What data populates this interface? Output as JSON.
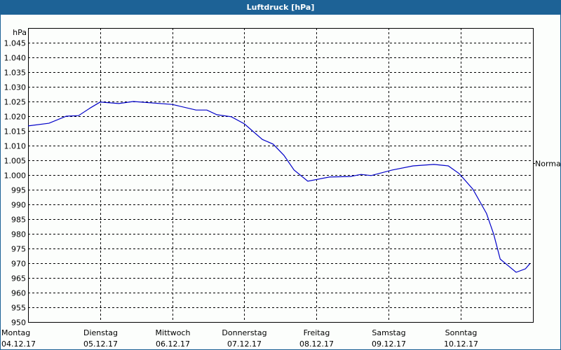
{
  "window": {
    "title": "Luftdruck [hPa]",
    "colors": {
      "titlebar": "#1d6296",
      "background": "#fcfefc",
      "line": "#0000c8",
      "grid": "#000000"
    }
  },
  "chart_data": {
    "type": "line",
    "title": "Luftdruck [hPa]",
    "ylabel": "hPa",
    "xlabel": "",
    "ylim": [
      950,
      1050
    ],
    "y_ticks": [
      "950",
      "955",
      "960",
      "965",
      "970",
      "975",
      "980",
      "985",
      "990",
      "995",
      "1.000",
      "1.005",
      "1.010",
      "1.015",
      "1.020",
      "1.025",
      "1.030",
      "1.035",
      "1.040",
      "1.045"
    ],
    "x_ticks": [
      {
        "day": "Montag",
        "date": "04.12.17"
      },
      {
        "day": "Dienstag",
        "date": "05.12.17"
      },
      {
        "day": "Mittwoch",
        "date": "06.12.17"
      },
      {
        "day": "Donnerstag",
        "date": "07.12.17"
      },
      {
        "day": "Freitag",
        "date": "08.12.17"
      },
      {
        "day": "Samstag",
        "date": "09.12.17"
      },
      {
        "day": "Sonntag",
        "date": "10.12.17"
      }
    ],
    "grid": true,
    "annotations": [
      {
        "label": "Normal",
        "y": 1004
      }
    ],
    "series": [
      {
        "name": "Luftdruck",
        "x_days": [
          0.0,
          0.29,
          0.53,
          0.7,
          0.87,
          1.0,
          1.26,
          1.46,
          2.0,
          2.33,
          2.48,
          2.62,
          2.82,
          3.0,
          3.25,
          3.4,
          3.55,
          3.69,
          3.88,
          4.18,
          4.47,
          4.62,
          4.76,
          5.05,
          5.34,
          5.63,
          5.83,
          5.98,
          6.17,
          6.36,
          6.46,
          6.55,
          6.77,
          6.9,
          6.96
        ],
        "values": [
          1016.7,
          1017.6,
          1020.0,
          1020.2,
          1022.9,
          1024.8,
          1024.3,
          1025.0,
          1024.0,
          1022.1,
          1022.1,
          1020.5,
          1019.8,
          1017.4,
          1012.1,
          1010.5,
          1006.7,
          1001.7,
          997.9,
          999.3,
          999.5,
          1000.2,
          999.8,
          1001.7,
          1003.1,
          1003.6,
          1003.1,
          1000.5,
          995.2,
          986.9,
          979.8,
          971.4,
          966.9,
          968.1,
          969.8
        ]
      }
    ]
  }
}
